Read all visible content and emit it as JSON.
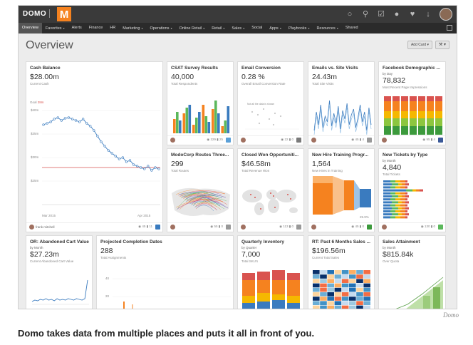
{
  "app": {
    "logo_text": "DOMO",
    "logo_mark": "M"
  },
  "top_icons": [
    "globe-icon",
    "search-icon",
    "check-icon",
    "chat-icon",
    "heart-icon",
    "download-icon"
  ],
  "nav": {
    "items": [
      {
        "label": "Overview",
        "active": true,
        "dropdown": false
      },
      {
        "label": "Favorites",
        "dropdown": true
      },
      {
        "label": "Alerts",
        "dropdown": false
      },
      {
        "label": "Finance",
        "dropdown": false
      },
      {
        "label": "HR",
        "dropdown": false
      },
      {
        "label": "Marketing",
        "dropdown": true
      },
      {
        "label": "Operations",
        "dropdown": true
      },
      {
        "label": "Online Retail",
        "dropdown": true
      },
      {
        "label": "Retail",
        "dropdown": true
      },
      {
        "label": "Sales",
        "dropdown": true
      },
      {
        "label": "Social",
        "dropdown": false
      },
      {
        "label": "Apps",
        "dropdown": true
      },
      {
        "label": "Playbooks",
        "dropdown": true
      },
      {
        "label": "Resources",
        "dropdown": true
      },
      {
        "label": "Shared",
        "dropdown": false
      }
    ]
  },
  "page": {
    "title": "Overview",
    "add_card_label": "Add Card ▾",
    "wrench_label": "⚒ ▾"
  },
  "cards": {
    "cash": {
      "title": "Cash Balance",
      "value": "$28.00m",
      "label": "Current Cash",
      "goal_label": "Goal",
      "goal_value": "28m",
      "y_ticks": [
        "$40m",
        "$35m",
        "$30m",
        "$25m"
      ],
      "x_ticks": [
        "Mar 2015",
        "Apr 2015"
      ],
      "owner": "frank mitchell",
      "views": "45",
      "comments": "11"
    },
    "csat": {
      "title": "CSAT Survey Results",
      "value": "40,000",
      "label": "Total Respondents",
      "views": "329",
      "comments": "25"
    },
    "email": {
      "title": "Email Conversion",
      "value": "0.28 %",
      "label": "Overall Email Conversion Rate",
      "note": "Not all the data is shown",
      "views": "22",
      "comments": "0"
    },
    "emails_visits": {
      "title": "Emails vs. Site Visits",
      "value": "24.43m",
      "label": "Total Site Visits",
      "views": "45",
      "comments": "4"
    },
    "facebook": {
      "title": "Facebook Demographic ...",
      "subtitle": "by Day",
      "value": "78,832",
      "label": "Most Recent Page Impressions",
      "views": "95",
      "comments": "4"
    },
    "routes": {
      "title": "ModoCorp Routes Three...",
      "value": "299",
      "label": "Total Routes",
      "views": "55",
      "comments": "0"
    },
    "closed_won": {
      "title": "Closed Won Opportuniti...",
      "value": "$46.58m",
      "label": "Total Revenue Won",
      "views": "113",
      "comments": "0"
    },
    "new_hire": {
      "title": "New Hire Training Progr...",
      "value": "1,564",
      "label": "New Hires in Training",
      "pct": "25.9%",
      "views": "45",
      "comments": "0"
    },
    "tickets": {
      "title": "New Tickets by Type",
      "subtitle": "by Month",
      "value": "4,840",
      "label": "Total Tickets",
      "views": "130",
      "comments": "0"
    },
    "cart": {
      "title": "OR: Abandoned Cart Value",
      "subtitle": "by Month",
      "value": "$27.23m",
      "label": "Current Abandoned Cart Value"
    },
    "projected": {
      "title": "Projected Completion Dates",
      "value": "288",
      "label": "Total Assignments",
      "y_ticks": [
        "40",
        "20"
      ]
    },
    "inventory": {
      "title": "Quarterly Inventory",
      "subtitle": "by Quarter",
      "value": "7,000",
      "label": "Total SKU's"
    },
    "rt_sales": {
      "title": "RT: Past 6 Months Sales ...",
      "value": "$196.56m",
      "label": "Current Total Sales"
    },
    "attainment": {
      "title": "Sales Attainment",
      "subtitle": "by Month",
      "value": "$815.84k",
      "label": "Over Quota"
    }
  },
  "credit": "Domo",
  "caption": "Domo takes data from multiple places and puts it all in front of you.",
  "colors": {
    "accent": "#f5821f",
    "line_blue": "#3a7bbf",
    "goal_red": "#d9534f"
  }
}
